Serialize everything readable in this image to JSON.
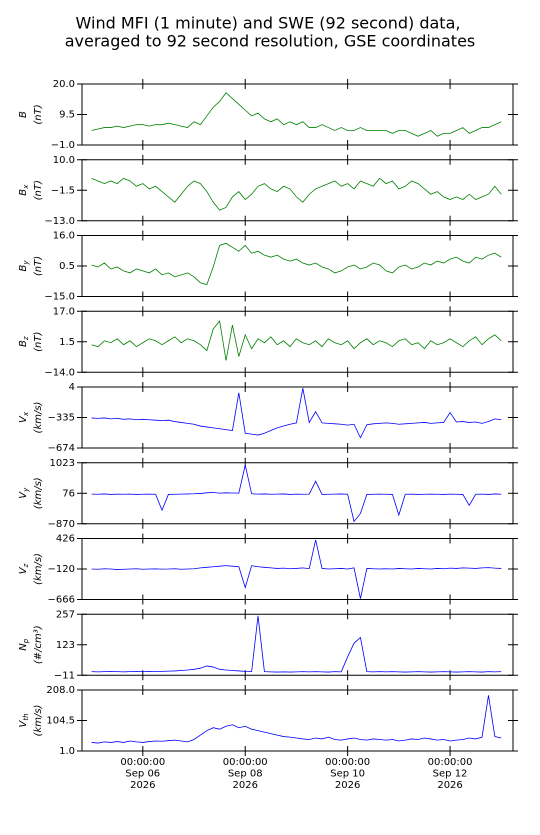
{
  "chart_data": {
    "type": "line",
    "title": [
      "Wind MFI (1 minute) and SWE (92 second) data,",
      "averaged to 92 second resolution, GSE coordinates"
    ],
    "x": [
      "2026-09-05 00:00",
      "2026-09-05 03:00",
      "2026-09-05 06:00",
      "2026-09-05 09:00",
      "2026-09-05 12:00",
      "2026-09-05 15:00",
      "2026-09-05 18:00",
      "2026-09-05 21:00",
      "2026-09-06 00:00",
      "2026-09-06 03:00",
      "2026-09-06 06:00",
      "2026-09-06 09:00",
      "2026-09-06 12:00",
      "2026-09-06 15:00",
      "2026-09-06 18:00",
      "2026-09-06 21:00",
      "2026-09-07 00:00",
      "2026-09-07 03:00",
      "2026-09-07 06:00",
      "2026-09-07 09:00",
      "2026-09-07 12:00",
      "2026-09-07 15:00",
      "2026-09-07 18:00",
      "2026-09-07 21:00",
      "2026-09-08 00:00",
      "2026-09-08 03:00",
      "2026-09-08 06:00",
      "2026-09-08 09:00",
      "2026-09-08 12:00",
      "2026-09-08 15:00",
      "2026-09-08 18:00",
      "2026-09-08 21:00",
      "2026-09-09 00:00",
      "2026-09-09 03:00",
      "2026-09-09 06:00",
      "2026-09-09 09:00",
      "2026-09-09 12:00",
      "2026-09-09 15:00",
      "2026-09-09 18:00",
      "2026-09-09 21:00",
      "2026-09-10 00:00",
      "2026-09-10 03:00",
      "2026-09-10 06:00",
      "2026-09-10 09:00",
      "2026-09-10 12:00",
      "2026-09-10 15:00",
      "2026-09-10 18:00",
      "2026-09-10 21:00",
      "2026-09-11 00:00",
      "2026-09-11 03:00",
      "2026-09-11 06:00",
      "2026-09-11 09:00",
      "2026-09-11 12:00",
      "2026-09-11 15:00",
      "2026-09-11 18:00",
      "2026-09-11 21:00",
      "2026-09-12 00:00",
      "2026-09-12 03:00",
      "2026-09-12 06:00",
      "2026-09-12 09:00",
      "2026-09-12 12:00",
      "2026-09-12 15:00",
      "2026-09-12 18:00",
      "2026-09-12 21:00",
      "2026-09-13 00:00"
    ],
    "xlim": [
      "2026-09-04 19:30",
      "2026-09-13 05:30"
    ],
    "xticks": [
      {
        "value": "2026-09-06 00:00",
        "label": [
          "00:00:00",
          "Sep 06",
          "2026"
        ]
      },
      {
        "value": "2026-09-08 00:00",
        "label": [
          "00:00:00",
          "Sep 08",
          "2026"
        ]
      },
      {
        "value": "2026-09-10 00:00",
        "label": [
          "00:00:00",
          "Sep 10",
          "2026"
        ]
      },
      {
        "value": "2026-09-12 00:00",
        "label": [
          "00:00:00",
          "Sep 12",
          "2026"
        ]
      }
    ],
    "panels": [
      {
        "symbol": "B",
        "unit": "(nT)",
        "color": "#008000",
        "ylim": [
          -1,
          20
        ],
        "yticks": [
          {
            "value": -1,
            "label": "−1.0"
          },
          {
            "value": 9.5,
            "label": "9.5"
          },
          {
            "value": 20,
            "label": "20.0"
          }
        ],
        "values": [
          4,
          4.5,
          5,
          5,
          5.5,
          5,
          5.5,
          6,
          6,
          5.5,
          6,
          6,
          6.5,
          6,
          5.5,
          5,
          7,
          6,
          9,
          12,
          14,
          17,
          15,
          13,
          11,
          9,
          10,
          8,
          7,
          8,
          6,
          7,
          6,
          7,
          5,
          5,
          6,
          5,
          4,
          5,
          4,
          4,
          5,
          4,
          4,
          4,
          4,
          3,
          4,
          4,
          3,
          2,
          3,
          4,
          2,
          3,
          3,
          4,
          5,
          3,
          4,
          5,
          5,
          6,
          7
        ]
      },
      {
        "symbol": "B",
        "subscript": "x",
        "unit": "(nT)",
        "color": "#008000",
        "ylim": [
          -13,
          10
        ],
        "yticks": [
          {
            "value": -13,
            "label": "−13.0"
          },
          {
            "value": -1.5,
            "label": "−1.5"
          },
          {
            "value": 10,
            "label": "10.0"
          }
        ],
        "values": [
          3,
          2,
          1,
          2,
          1,
          3,
          2,
          0,
          1,
          -1,
          0,
          -2,
          -4,
          -6,
          -3,
          0,
          2,
          1,
          -2,
          -6,
          -9,
          -8,
          -4,
          -2,
          -5,
          -3,
          0,
          1,
          -1,
          -2,
          0,
          -1,
          -4,
          -6,
          -3,
          -1,
          0,
          1,
          2,
          0,
          1,
          -1,
          2,
          1,
          0,
          3,
          1,
          2,
          -1,
          0,
          2,
          1,
          -1,
          -3,
          -2,
          -4,
          -5,
          -4,
          -5,
          -3,
          -5,
          -4,
          -3,
          0,
          -3
        ]
      },
      {
        "symbol": "B",
        "subscript": "y",
        "unit": "(nT)",
        "color": "#008000",
        "ylim": [
          -15,
          16
        ],
        "yticks": [
          {
            "value": -15,
            "label": "−15.0"
          },
          {
            "value": 0.5,
            "label": "0.5"
          },
          {
            "value": 16,
            "label": "16.0"
          }
        ],
        "values": [
          1,
          0,
          2,
          -1,
          0,
          -2,
          -3,
          -1,
          -2,
          -3,
          -1,
          -4,
          -3,
          -5,
          -4,
          -3,
          -5,
          -8,
          -9,
          0,
          11,
          12,
          10,
          8,
          11,
          7,
          8,
          6,
          5,
          6,
          4,
          3,
          4,
          2,
          1,
          2,
          0,
          -1,
          -3,
          -2,
          0,
          1,
          -1,
          0,
          2,
          1,
          -2,
          -3,
          0,
          1,
          -1,
          0,
          2,
          1,
          3,
          2,
          4,
          5,
          3,
          2,
          5,
          4,
          6,
          7,
          5
        ]
      },
      {
        "symbol": "B",
        "subscript": "z",
        "unit": "(nT)",
        "color": "#008000",
        "ylim": [
          -14,
          17
        ],
        "yticks": [
          {
            "value": -14,
            "label": "−14.0"
          },
          {
            "value": 1.5,
            "label": "1.5"
          },
          {
            "value": 17,
            "label": "17.0"
          }
        ],
        "values": [
          0,
          -1,
          2,
          1,
          3,
          0,
          2,
          -1,
          1,
          3,
          2,
          0,
          2,
          4,
          1,
          3,
          2,
          0,
          -3,
          8,
          12,
          -8,
          10,
          -6,
          5,
          -2,
          3,
          1,
          4,
          0,
          2,
          -1,
          3,
          1,
          0,
          2,
          -1,
          3,
          1,
          0,
          2,
          -2,
          1,
          3,
          0,
          2,
          1,
          -1,
          2,
          3,
          0,
          1,
          -2,
          2,
          0,
          1,
          3,
          1,
          -1,
          2,
          4,
          0,
          3,
          5,
          2
        ]
      },
      {
        "symbol": "V",
        "subscript": "x",
        "unit": "(km/s)",
        "color": "#0000ff",
        "ylim": [
          -674,
          4
        ],
        "yticks": [
          {
            "value": -674,
            "label": "−674"
          },
          {
            "value": -335,
            "label": "−335"
          },
          4
        ],
        "values": [
          -340,
          -345,
          -340,
          -350,
          -345,
          -355,
          -350,
          -360,
          -355,
          -360,
          -365,
          -370,
          -365,
          -380,
          -390,
          -400,
          -410,
          -430,
          -440,
          -450,
          -460,
          -470,
          -480,
          -60,
          -510,
          -520,
          -530,
          -510,
          -480,
          -450,
          -430,
          -410,
          -395,
          -10,
          -390,
          -270,
          -395,
          -400,
          -405,
          -410,
          -420,
          -410,
          -560,
          -415,
          -405,
          -400,
          -395,
          -400,
          -410,
          -405,
          -400,
          -395,
          -390,
          -400,
          -395,
          -390,
          -280,
          -385,
          -380,
          -390,
          -385,
          -400,
          -380,
          -350,
          -360
        ]
      },
      {
        "symbol": "V",
        "subscript": "y",
        "unit": "(km/s)",
        "color": "#0000ff",
        "ylim": [
          -870,
          1023
        ],
        "yticks": [
          {
            "value": -870,
            "label": "−870"
          },
          76,
          1023
        ],
        "values": [
          50,
          45,
          55,
          40,
          50,
          45,
          50,
          40,
          45,
          50,
          45,
          -450,
          40,
          45,
          50,
          55,
          60,
          70,
          90,
          100,
          80,
          90,
          85,
          80,
          950,
          60,
          50,
          55,
          45,
          50,
          55,
          40,
          50,
          45,
          50,
          450,
          40,
          45,
          50,
          55,
          45,
          -800,
          -550,
          40,
          45,
          50,
          45,
          40,
          -600,
          45,
          50,
          40,
          45,
          50,
          45,
          40,
          50,
          45,
          40,
          -300,
          45,
          50,
          40,
          55,
          45
        ]
      },
      {
        "symbol": "V",
        "subscript": "z",
        "unit": "(km/s)",
        "color": "#0000ff",
        "ylim": [
          -666,
          426
        ],
        "yticks": [
          {
            "value": -666,
            "label": "−666"
          },
          {
            "value": -120,
            "label": "−120"
          },
          426
        ],
        "values": [
          -120,
          -125,
          -115,
          -120,
          -130,
          -125,
          -120,
          -115,
          -125,
          -120,
          -118,
          -122,
          -120,
          -115,
          -125,
          -120,
          -115,
          -100,
          -90,
          -80,
          -70,
          -60,
          -70,
          -80,
          -450,
          -60,
          -80,
          -90,
          -100,
          -110,
          -105,
          -115,
          -110,
          -100,
          -115,
          400,
          -110,
          -120,
          -115,
          -110,
          -120,
          -100,
          -650,
          -110,
          -115,
          -120,
          -115,
          -120,
          -110,
          -115,
          -120,
          -110,
          -115,
          -120,
          -110,
          -115,
          -105,
          -110,
          -100,
          -105,
          -110,
          -100,
          -95,
          -105,
          -110
        ]
      },
      {
        "symbol": "N",
        "subscript": "p",
        "unit": "(#/cm³)",
        "color": "#0000ff",
        "ylim": [
          -11,
          257
        ],
        "yticks": [
          {
            "value": -11,
            "label": "−11"
          },
          123,
          257
        ],
        "values": [
          5,
          4,
          5,
          6,
          5,
          4,
          5,
          6,
          5,
          6,
          5,
          6,
          7,
          8,
          10,
          12,
          15,
          20,
          30,
          25,
          15,
          12,
          10,
          8,
          6,
          5,
          250,
          5,
          4,
          3,
          4,
          3,
          4,
          5,
          4,
          5,
          4,
          3,
          5,
          4,
          70,
          130,
          155,
          5,
          4,
          5,
          4,
          5,
          4,
          3,
          4,
          5,
          4,
          3,
          4,
          5,
          4,
          3,
          4,
          5,
          4,
          3,
          5,
          4,
          5
        ]
      },
      {
        "symbol": "V",
        "subscript": "th",
        "unit": "(km/s)",
        "color": "#0000ff",
        "ylim": [
          1,
          208
        ],
        "yticks": [
          {
            "value": 1,
            "label": "1.0"
          },
          {
            "value": 104.5,
            "label": "104.5"
          },
          {
            "value": 208,
            "label": "208.0"
          }
        ],
        "values": [
          30,
          28,
          32,
          30,
          33,
          30,
          35,
          32,
          30,
          33,
          35,
          34,
          36,
          38,
          35,
          32,
          40,
          55,
          70,
          80,
          75,
          85,
          90,
          80,
          85,
          75,
          70,
          65,
          60,
          55,
          50,
          48,
          45,
          42,
          40,
          45,
          42,
          48,
          40,
          38,
          42,
          45,
          40,
          38,
          42,
          40,
          38,
          40,
          35,
          38,
          42,
          40,
          45,
          42,
          38,
          40,
          35,
          38,
          40,
          45,
          42,
          48,
          190,
          50,
          45
        ]
      }
    ]
  }
}
